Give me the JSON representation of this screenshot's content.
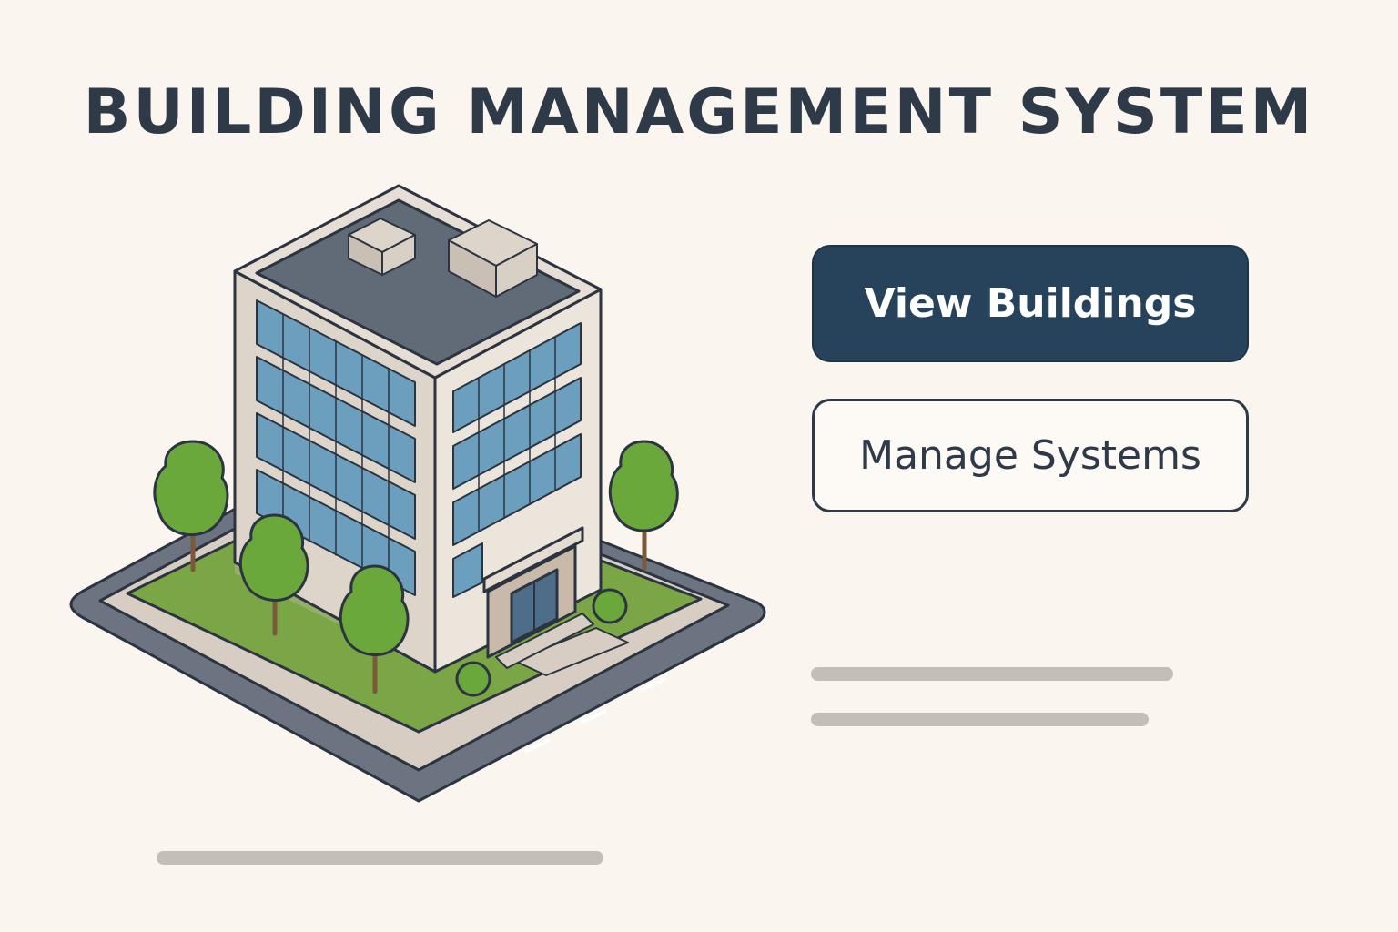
{
  "header": {
    "title": "BUILDING MANAGEMENT SYSTEM"
  },
  "actions": {
    "view_buildings_label": "View Buildings",
    "manage_systems_label": "Manage Systems"
  },
  "illustration": {
    "icon": "office-building-icon"
  },
  "colors": {
    "background": "#fbf5ef",
    "primary": "#27435b",
    "text": "#2e3a48",
    "placeholder": "#c3beb8"
  }
}
